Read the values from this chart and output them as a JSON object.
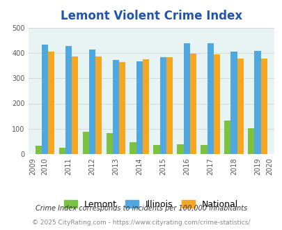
{
  "title": "Lemont Violent Crime Index",
  "years": [
    2010,
    2011,
    2012,
    2013,
    2014,
    2015,
    2016,
    2017,
    2018,
    2019
  ],
  "lemont": [
    33,
    25,
    88,
    82,
    48,
    35,
    40,
    35,
    132,
    103
  ],
  "illinois": [
    432,
    427,
    413,
    371,
    368,
    382,
    437,
    437,
    404,
    408
  ],
  "national": [
    404,
    387,
    387,
    365,
    375,
    383,
    397,
    394,
    379,
    379
  ],
  "lemont_color": "#7bc142",
  "illinois_color": "#4fa8e0",
  "national_color": "#f5a623",
  "bg_color": "#e8f4f4",
  "title_color": "#2255aa",
  "ylim": [
    0,
    500
  ],
  "yticks": [
    0,
    100,
    200,
    300,
    400,
    500
  ],
  "footnote1": "Crime Index corresponds to incidents per 100,000 inhabitants",
  "footnote2": "© 2025 CityRating.com - https://www.cityrating.com/crime-statistics/",
  "footnote1_color": "#333333",
  "footnote2_color": "#888888",
  "bar_width": 0.27
}
